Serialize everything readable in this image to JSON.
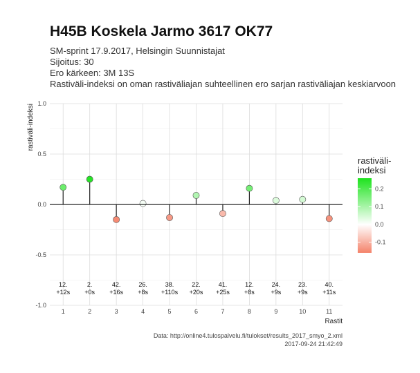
{
  "header": {
    "title": "H45B Koskela Jarmo 3617 OK77",
    "subtitle_lines": [
      "SM-sprint 17.9.2017, Helsingin Suunnistajat",
      "Sijoitus: 30",
      "Ero kärkeen: 3M 13S",
      "Rastiväli-indeksi on oman rastiväliajan suhteellinen ero sarjan rastiväliajan keskiarvoon"
    ]
  },
  "caption": {
    "source": "Data: http://online4.tulospalvelu.fi/tulokset/results_2017_smyo_2.xml",
    "timestamp": "2017-09-24 21:42:49"
  },
  "chart_data": {
    "type": "scatter",
    "style": "lollipop",
    "xlabel": "Rastit",
    "ylabel": "rastiväli-indeksi",
    "x": [
      1,
      2,
      3,
      4,
      5,
      6,
      7,
      8,
      9,
      10,
      11
    ],
    "values": [
      0.17,
      0.25,
      -0.15,
      0.01,
      -0.13,
      0.09,
      -0.09,
      0.16,
      0.04,
      0.05,
      -0.14
    ],
    "point_labels": [
      [
        "12.",
        "+12s"
      ],
      [
        "2.",
        "+0s"
      ],
      [
        "42.",
        "+16s"
      ],
      [
        "26.",
        "+8s"
      ],
      [
        "38.",
        "+110s"
      ],
      [
        "22.",
        "+20s"
      ],
      [
        "41.",
        "+25s"
      ],
      [
        "12.",
        "+8s"
      ],
      [
        "24.",
        "+9s"
      ],
      [
        "23.",
        "+9s"
      ],
      [
        "40.",
        "+11s"
      ]
    ],
    "xlim": [
      0.5,
      11.5
    ],
    "ylim": [
      -1.0,
      1.0
    ],
    "yticks": [
      -1.0,
      -0.5,
      0.0,
      0.5,
      1.0
    ],
    "ytick_labels": [
      "-1.0",
      "-0.5",
      "0.0",
      "0.5",
      "1.0"
    ],
    "grid": true,
    "legend": {
      "title_lines": [
        "rastiväli-",
        "indeksi"
      ],
      "placement": "right",
      "ticks": [
        0.2,
        0.1,
        0.0,
        -0.1
      ],
      "tick_labels": [
        "0.2",
        "0.1",
        "0.0",
        "-0.1"
      ],
      "range": [
        -0.16,
        0.26
      ]
    },
    "colors": {
      "high": "#1ee31e",
      "mid": "#ffffff",
      "low": "#f4826a"
    }
  }
}
